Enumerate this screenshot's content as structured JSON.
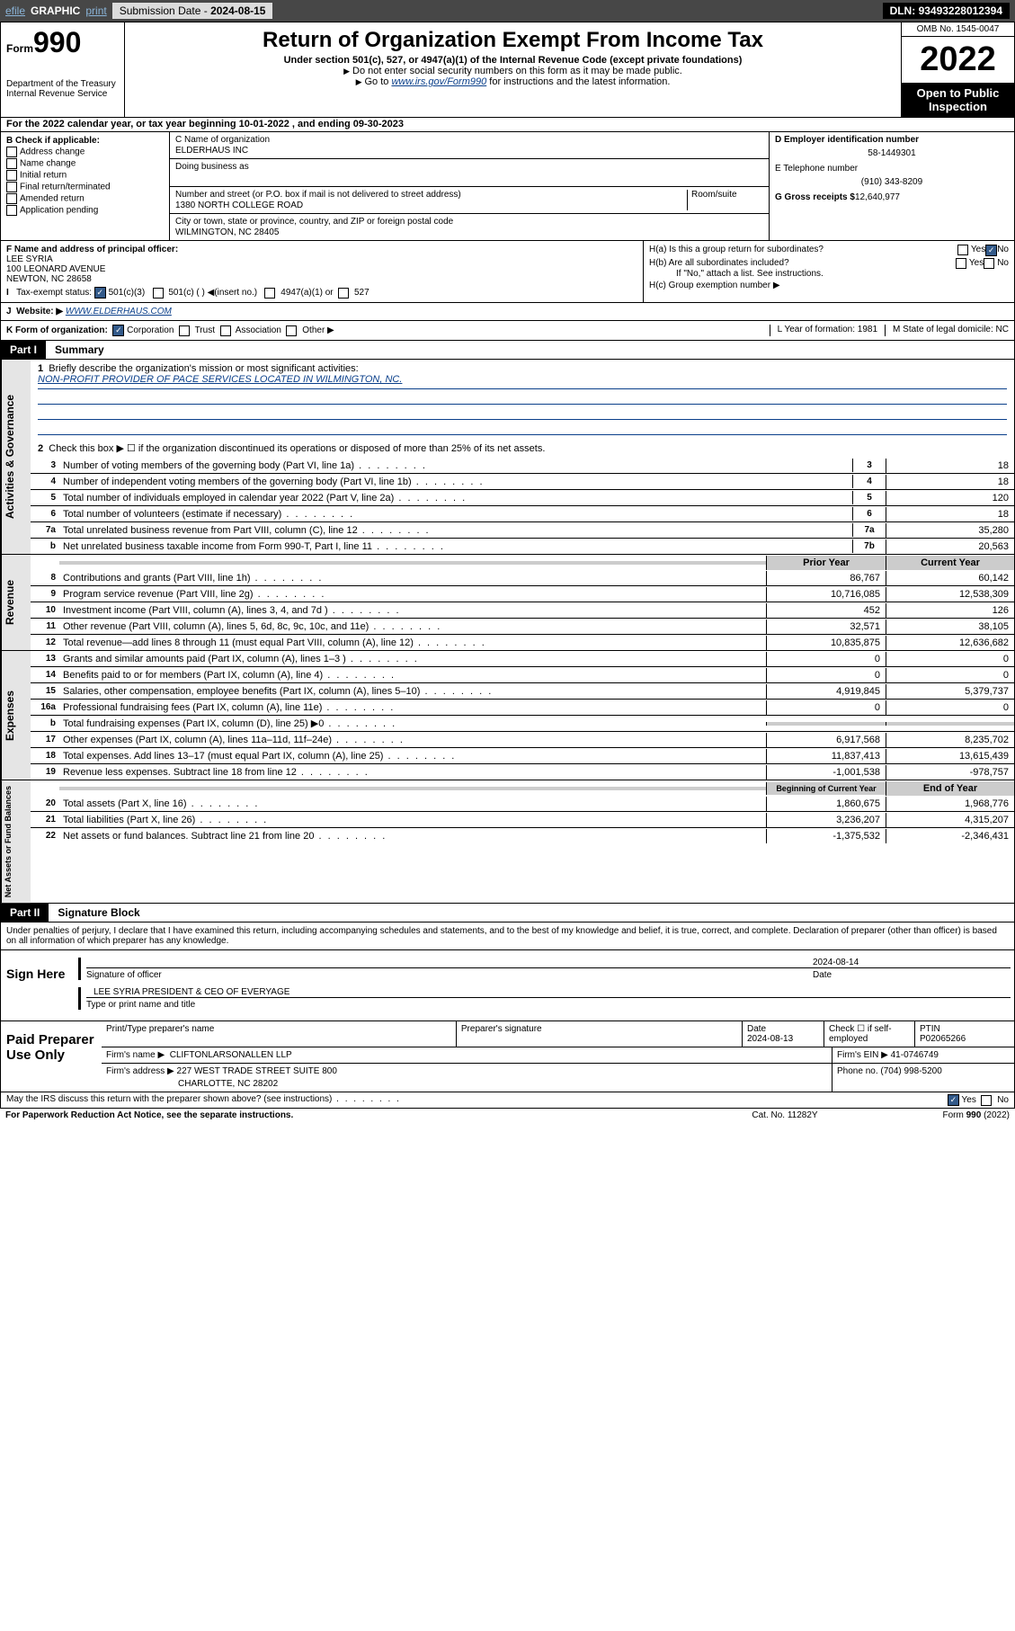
{
  "topbar": {
    "efile": "efile",
    "graphic": "GRAPHIC",
    "print": "print",
    "sub_lbl": "Submission Date - ",
    "sub_date": "2024-08-15",
    "dln_lbl": "DLN: ",
    "dln": "93493228012394"
  },
  "header": {
    "form_prefix": "Form",
    "form_num": "990",
    "dept": "Department of the Treasury",
    "irs": "Internal Revenue Service",
    "title": "Return of Organization Exempt From Income Tax",
    "sub": "Under section 501(c), 527, or 4947(a)(1) of the Internal Revenue Code (except private foundations)",
    "note1": "Do not enter social security numbers on this form as it may be made public.",
    "note2_pre": "Go to ",
    "note2_link": "www.irs.gov/Form990",
    "note2_post": " for instructions and the latest information.",
    "omb": "OMB No. 1545-0047",
    "year": "2022",
    "open": "Open to Public Inspection"
  },
  "line_a": "For the 2022 calendar year, or tax year beginning 10-01-2022   , and ending 09-30-2023",
  "checks": {
    "hdr": "B Check if applicable:",
    "c1": "Address change",
    "c2": "Name change",
    "c3": "Initial return",
    "c4": "Final return/terminated",
    "c5": "Amended return",
    "c6": "Application pending"
  },
  "org": {
    "name_lbl": "C Name of organization",
    "name": "ELDERHAUS INC",
    "dba_lbl": "Doing business as",
    "dba": "",
    "addr_lbl": "Number and street (or P.O. box if mail is not delivered to street address)",
    "room_lbl": "Room/suite",
    "addr": "1380 NORTH COLLEGE ROAD",
    "city_lbl": "City or town, state or province, country, and ZIP or foreign postal code",
    "city": "WILMINGTON, NC  28405"
  },
  "right": {
    "ein_lbl": "D Employer identification number",
    "ein": "58-1449301",
    "tel_lbl": "E Telephone number",
    "tel": "(910) 343-8209",
    "gross_lbl": "G Gross receipts $",
    "gross": "12,640,977"
  },
  "sec_f": {
    "lbl": "F  Name and address of principal officer:",
    "name": "LEE SYRIA",
    "addr1": "100 LEONARD AVENUE",
    "addr2": "NEWTON, NC  28658",
    "i_lbl": "Tax-exempt status:",
    "i1": "501(c)(3)",
    "i2": "501(c) (  )",
    "i2b": "(insert no.)",
    "i3": "4947(a)(1) or",
    "i4": "527",
    "h_a": "H(a)  Is this a group return for subordinates?",
    "h_b": "H(b)  Are all subordinates included?",
    "h_b2": "If \"No,\" attach a list. See instructions.",
    "h_c": "H(c)  Group exemption number ▶",
    "yes": "Yes",
    "no": "No"
  },
  "sec_j": {
    "lbl": "Website: ▶",
    "val": "WWW.ELDERHAUS.COM"
  },
  "sec_k": {
    "lbl": "K Form of organization:",
    "c1": "Corporation",
    "c2": "Trust",
    "c3": "Association",
    "c4": "Other ▶",
    "l": "L Year of formation: 1981",
    "m": "M State of legal domicile: NC"
  },
  "part1": {
    "title": "Part I",
    "sub": "Summary"
  },
  "labels": {
    "gov": "Activities & Governance",
    "rev": "Revenue",
    "exp": "Expenses",
    "net": "Net Assets or Fund Balances"
  },
  "l1": {
    "q": "Briefly describe the organization's mission or most significant activities:",
    "a": "NON-PROFIT PROVIDER OF PACE SERVICES LOCATED IN WILMINGTON, NC."
  },
  "l2": "Check this box ▶ ☐  if the organization discontinued its operations or disposed of more than 25% of its net assets.",
  "rows": [
    {
      "n": "3",
      "t": "Number of voting members of the governing body (Part VI, line 1a)",
      "b": "3",
      "v": "18"
    },
    {
      "n": "4",
      "t": "Number of independent voting members of the governing body (Part VI, line 1b)",
      "b": "4",
      "v": "18"
    },
    {
      "n": "5",
      "t": "Total number of individuals employed in calendar year 2022 (Part V, line 2a)",
      "b": "5",
      "v": "120"
    },
    {
      "n": "6",
      "t": "Total number of volunteers (estimate if necessary)",
      "b": "6",
      "v": "18"
    },
    {
      "n": "7a",
      "t": "Total unrelated business revenue from Part VIII, column (C), line 12",
      "b": "7a",
      "v": "35,280"
    },
    {
      "n": "b",
      "t": "Net unrelated business taxable income from Form 990-T, Part I, line 11",
      "b": "7b",
      "v": "20,563"
    }
  ],
  "colhdr": {
    "py": "Prior Year",
    "cy": "Current Year"
  },
  "rev": [
    {
      "n": "8",
      "t": "Contributions and grants (Part VIII, line 1h)",
      "p": "86,767",
      "c": "60,142"
    },
    {
      "n": "9",
      "t": "Program service revenue (Part VIII, line 2g)",
      "p": "10,716,085",
      "c": "12,538,309"
    },
    {
      "n": "10",
      "t": "Investment income (Part VIII, column (A), lines 3, 4, and 7d )",
      "p": "452",
      "c": "126"
    },
    {
      "n": "11",
      "t": "Other revenue (Part VIII, column (A), lines 5, 6d, 8c, 9c, 10c, and 11e)",
      "p": "32,571",
      "c": "38,105"
    },
    {
      "n": "12",
      "t": "Total revenue—add lines 8 through 11 (must equal Part VIII, column (A), line 12)",
      "p": "10,835,875",
      "c": "12,636,682"
    }
  ],
  "exp": [
    {
      "n": "13",
      "t": "Grants and similar amounts paid (Part IX, column (A), lines 1–3 )",
      "p": "0",
      "c": "0"
    },
    {
      "n": "14",
      "t": "Benefits paid to or for members (Part IX, column (A), line 4)",
      "p": "0",
      "c": "0"
    },
    {
      "n": "15",
      "t": "Salaries, other compensation, employee benefits (Part IX, column (A), lines 5–10)",
      "p": "4,919,845",
      "c": "5,379,737"
    },
    {
      "n": "16a",
      "t": "Professional fundraising fees (Part IX, column (A), line 11e)",
      "p": "0",
      "c": "0"
    },
    {
      "n": "b",
      "t": "Total fundraising expenses (Part IX, column (D), line 25) ▶0",
      "p": "",
      "c": "",
      "gray": true
    },
    {
      "n": "17",
      "t": "Other expenses (Part IX, column (A), lines 11a–11d, 11f–24e)",
      "p": "6,917,568",
      "c": "8,235,702"
    },
    {
      "n": "18",
      "t": "Total expenses. Add lines 13–17 (must equal Part IX, column (A), line 25)",
      "p": "11,837,413",
      "c": "13,615,439"
    },
    {
      "n": "19",
      "t": "Revenue less expenses. Subtract line 18 from line 12",
      "p": "-1,001,538",
      "c": "-978,757"
    }
  ],
  "colhdr2": {
    "py": "Beginning of Current Year",
    "cy": "End of Year"
  },
  "net": [
    {
      "n": "20",
      "t": "Total assets (Part X, line 16)",
      "p": "1,860,675",
      "c": "1,968,776"
    },
    {
      "n": "21",
      "t": "Total liabilities (Part X, line 26)",
      "p": "3,236,207",
      "c": "4,315,207"
    },
    {
      "n": "22",
      "t": "Net assets or fund balances. Subtract line 21 from line 20",
      "p": "-1,375,532",
      "c": "-2,346,431"
    }
  ],
  "part2": {
    "title": "Part II",
    "sub": "Signature Block"
  },
  "p2_decl": "Under penalties of perjury, I declare that I have examined this return, including accompanying schedules and statements, and to the best of my knowledge and belief, it is true, correct, and complete. Declaration of preparer (other than officer) is based on all information of which preparer has any knowledge.",
  "sign": {
    "lbl": "Sign Here",
    "sig_lbl": "Signature of officer",
    "date_lbl": "Date",
    "date": "2024-08-14",
    "name": "LEE SYRIA  PRESIDENT & CEO OF EVERYAGE",
    "name_lbl": "Type or print name and title"
  },
  "paid": {
    "lbl": "Paid Preparer Use Only",
    "h1": "Print/Type preparer's name",
    "h2": "Preparer's signature",
    "h3": "Date",
    "h3v": "2024-08-13",
    "h4": "Check ☐ if self-employed",
    "h5": "PTIN",
    "h5v": "P02065266",
    "firm_lbl": "Firm's name   ▶",
    "firm": "CLIFTONLARSONALLEN LLP",
    "ein_lbl": "Firm's EIN ▶",
    "ein": "41-0746749",
    "addr_lbl": "Firm's address ▶",
    "addr1": "227 WEST TRADE STREET SUITE 800",
    "addr2": "CHARLOTTE, NC  28202",
    "ph_lbl": "Phone no.",
    "ph": "(704) 998-5200"
  },
  "foot": {
    "q": "May the IRS discuss this return with the preparer shown above? (see instructions)",
    "yes": "Yes",
    "no": "No"
  },
  "foot2": {
    "l": "For Paperwork Reduction Act Notice, see the separate instructions.",
    "c": "Cat. No. 11282Y",
    "r": "Form 990 (2022)"
  }
}
